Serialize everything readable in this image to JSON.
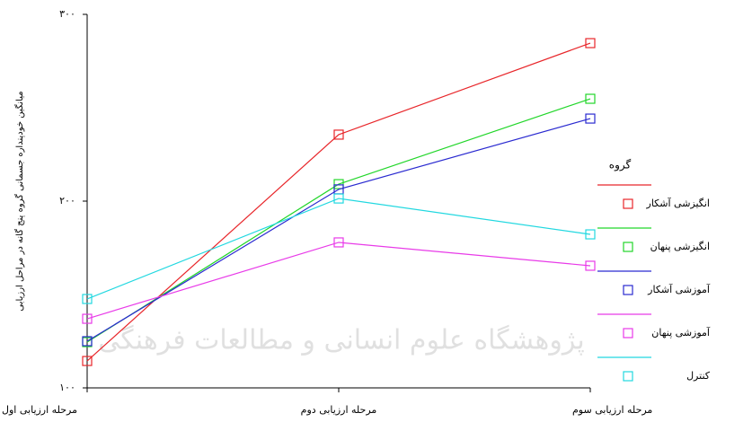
{
  "chart_data": {
    "type": "line",
    "y_label": "میانگین خودپنداره جسمانی گروه پنج گانه در مراحل ارزیابی",
    "legend_title": "گروه",
    "watermark": "پژوهشگاه علوم انسانی و مطالعات فرهنگی",
    "categories": [
      "مرحله ارزیابی اول",
      "مرحله ارزیابی دوم",
      "مرحله ارزیابی سوم"
    ],
    "ylim": [
      100,
      300
    ],
    "yticks": [
      {
        "value": 100,
        "label": "۱۰۰"
      },
      {
        "value": 200,
        "label": "۲۰۰"
      },
      {
        "value": 300,
        "label": "۳۰۰"
      }
    ],
    "legend": "right",
    "series": [
      {
        "name": "انگیزشی آشکار",
        "color": "#e8262a",
        "values": [
          114.4,
          235.6,
          284.6
        ]
      },
      {
        "name": "انگیزشی پنهان",
        "color": "#22d62a",
        "values": [
          124.5,
          209.1,
          254.8
        ]
      },
      {
        "name": "آموزشی آشکار",
        "color": "#2a2ad0",
        "values": [
          125,
          206.3,
          244.2
        ]
      },
      {
        "name": "آموزشی پنهان",
        "color": "#e83ae8",
        "values": [
          137,
          177.9,
          165.4
        ]
      },
      {
        "name": "کنترل",
        "color": "#22d8e0",
        "values": [
          147.6,
          201.4,
          182.2
        ]
      }
    ]
  }
}
